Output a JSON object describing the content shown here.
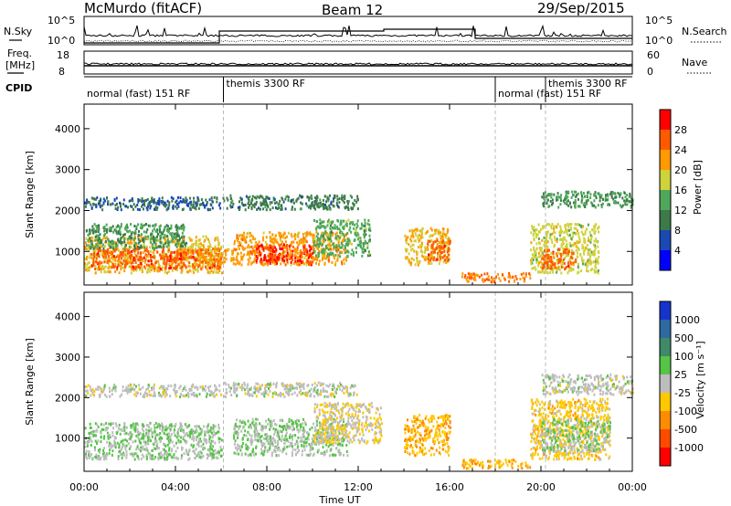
{
  "header": {
    "station": "McMurdo (fitACF)",
    "beam": "Beam 12",
    "date": "29/Sep/2015"
  },
  "nsky_panel": {
    "left_label": "N.Sky",
    "right_label": "N.Search",
    "left_ticks": [
      "10^5",
      "10^0"
    ],
    "right_ticks": [
      "10^5",
      "10^0"
    ]
  },
  "freq_panel": {
    "left_label_1": "Freq.",
    "left_label_2": "[MHz]",
    "right_label": "Nave",
    "left_ticks": [
      "18",
      "8"
    ],
    "right_ticks": [
      "60",
      "0"
    ]
  },
  "cpid_panel": {
    "label": "CPID",
    "segments": [
      {
        "start_hour": 0,
        "end_hour": 6.1,
        "label": "normal (fast) 151 RF"
      },
      {
        "start_hour": 6.1,
        "end_hour": 18.0,
        "label": "themis 3300 RF"
      },
      {
        "start_hour": 18.0,
        "end_hour": 20.2,
        "label": "normal (fast) 151 RF"
      },
      {
        "start_hour": 20.2,
        "end_hour": 24,
        "label": "themis 3300 RF"
      }
    ]
  },
  "xaxis": {
    "label": "Time UT",
    "ticks": [
      "00:00",
      "04:00",
      "08:00",
      "12:00",
      "16:00",
      "20:00",
      "00:00"
    ]
  },
  "power_colorbar": {
    "label": "Power [dB]",
    "ticks": [
      "4",
      "8",
      "12",
      "16",
      "20",
      "24",
      "28"
    ],
    "colors": [
      "#0000ff",
      "#1a49b3",
      "#3d7a4a",
      "#4fa85a",
      "#cfd23a",
      "#ff9a00",
      "#ff5a00",
      "#ff0000"
    ]
  },
  "velocity_colorbar": {
    "label": "Velocity [m s⁻¹]",
    "ticks": [
      "1000",
      "500",
      "100",
      "25",
      "-25",
      "-100",
      "-500",
      "-1000"
    ],
    "colors": [
      "#1633cc",
      "#2c6aa0",
      "#3f8a6a",
      "#55c447",
      "#bdbdbd",
      "#ffc800",
      "#ff8c00",
      "#ff4a00",
      "#ff0000"
    ]
  },
  "chart_data": {
    "type": "heatmap",
    "title": "",
    "xlabel": "Time UT",
    "ylabel": "Slant Range [km]",
    "xlim": [
      0,
      24
    ],
    "ylim": [
      180,
      4600
    ],
    "yticks": [
      1000,
      2000,
      3000,
      4000
    ],
    "panels": [
      {
        "name": "Power",
        "colorbar_label": "Power [dB]",
        "crange": [
          0,
          32
        ],
        "regions": [
          {
            "t0": 0.0,
            "t1": 6.0,
            "r0": 500,
            "r1": 1400,
            "value": 20
          },
          {
            "t0": 0.3,
            "t1": 6.0,
            "r0": 600,
            "r1": 1100,
            "value": 26
          },
          {
            "t0": 0.0,
            "t1": 6.0,
            "r0": 2050,
            "r1": 2350,
            "value": 8
          },
          {
            "t0": 0.0,
            "t1": 4.5,
            "r0": 1100,
            "r1": 1700,
            "value": 12
          },
          {
            "t0": 5.0,
            "t1": 6.5,
            "r0": 700,
            "r1": 1100,
            "value": 22
          },
          {
            "t0": 6.5,
            "t1": 11.5,
            "r0": 700,
            "r1": 1500,
            "value": 22
          },
          {
            "t0": 7.5,
            "t1": 10.0,
            "r0": 700,
            "r1": 1200,
            "value": 28
          },
          {
            "t0": 10.0,
            "t1": 12.5,
            "r0": 900,
            "r1": 1800,
            "value": 14
          },
          {
            "t0": 6.0,
            "t1": 12.0,
            "r0": 2050,
            "r1": 2400,
            "value": 10
          },
          {
            "t0": 14.0,
            "t1": 16.0,
            "r0": 700,
            "r1": 1600,
            "value": 20
          },
          {
            "t0": 15.0,
            "t1": 16.0,
            "r0": 800,
            "r1": 1300,
            "value": 26
          },
          {
            "t0": 16.5,
            "t1": 19.5,
            "r0": 280,
            "r1": 500,
            "value": 24
          },
          {
            "t0": 19.5,
            "t1": 22.5,
            "r0": 500,
            "r1": 1700,
            "value": 18
          },
          {
            "t0": 20.0,
            "t1": 21.5,
            "r0": 600,
            "r1": 1100,
            "value": 26
          },
          {
            "t0": 20.0,
            "t1": 24.0,
            "r0": 2100,
            "r1": 2500,
            "value": 12
          }
        ]
      },
      {
        "name": "Velocity",
        "colorbar_label": "Velocity [m s⁻¹]",
        "crange": [
          -1000,
          1000
        ],
        "regions": [
          {
            "t0": 0.0,
            "t1": 6.0,
            "r0": 500,
            "r1": 1400,
            "value": 100
          },
          {
            "t0": 0.0,
            "t1": 6.0,
            "r0": 2050,
            "r1": 2350,
            "value": 0
          },
          {
            "t0": 6.5,
            "t1": 11.5,
            "r0": 600,
            "r1": 1500,
            "value": 100
          },
          {
            "t0": 10.0,
            "t1": 13.0,
            "r0": 900,
            "r1": 1900,
            "value": -100
          },
          {
            "t0": 6.0,
            "t1": 12.0,
            "r0": 2050,
            "r1": 2400,
            "value": 0
          },
          {
            "t0": 14.0,
            "t1": 16.0,
            "r0": 600,
            "r1": 1600,
            "value": -300
          },
          {
            "t0": 16.5,
            "t1": 19.5,
            "r0": 280,
            "r1": 500,
            "value": -300
          },
          {
            "t0": 19.5,
            "t1": 23.0,
            "r0": 500,
            "r1": 2000,
            "value": -200
          },
          {
            "t0": 20.0,
            "t1": 23.0,
            "r0": 700,
            "r1": 1500,
            "value": 100
          },
          {
            "t0": 20.0,
            "t1": 24.0,
            "r0": 2100,
            "r1": 2600,
            "value": 0
          }
        ]
      }
    ]
  }
}
